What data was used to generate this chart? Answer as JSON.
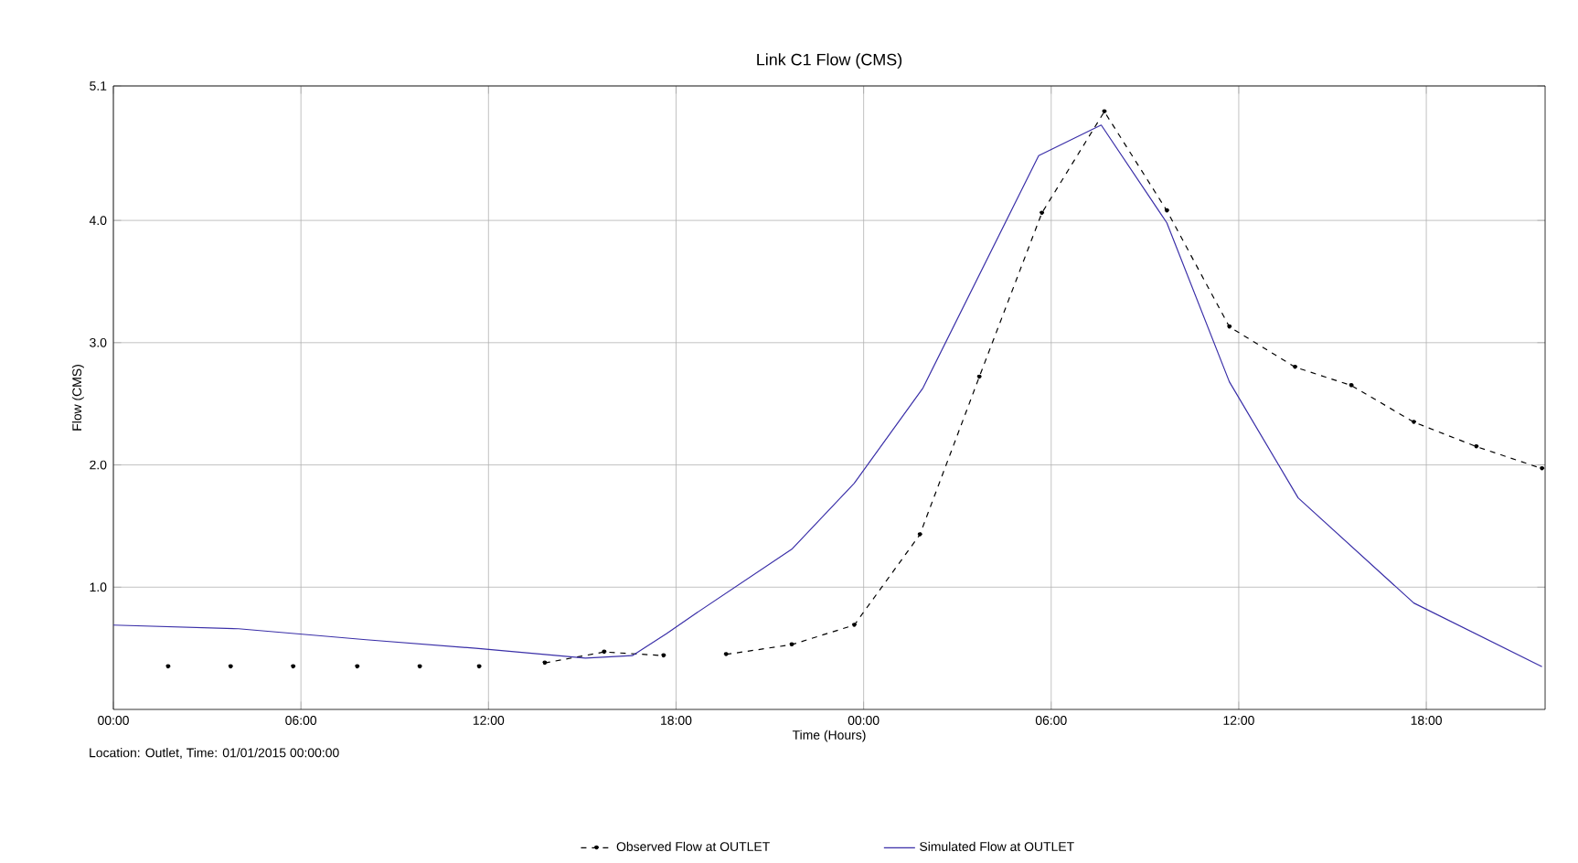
{
  "chart_data": {
    "type": "line",
    "title": "Link C1 Flow (CMS)",
    "xlabel": "Time (Hours)",
    "ylabel": "Flow (CMS)",
    "annotations": [
      "Location: Outlet, Time: 01/01/2015 00:00:00"
    ],
    "xlim": [
      "2015-01-01T00:00",
      "2015-01-02T21:48"
    ],
    "ylim": [
      0,
      5.1
    ],
    "xticks": [
      {
        "value": "2015-01-01T00:00",
        "label": "00:00"
      },
      {
        "value": "2015-01-01T06:00",
        "label": "06:00"
      },
      {
        "value": "2015-01-01T12:00",
        "label": "12:00"
      },
      {
        "value": "2015-01-01T18:00",
        "label": "18:00"
      },
      {
        "value": "2015-01-02T00:00",
        "label": "00:00"
      },
      {
        "value": "2015-01-02T06:00",
        "label": "06:00"
      },
      {
        "value": "2015-01-02T12:00",
        "label": "12:00"
      },
      {
        "value": "2015-01-02T18:00",
        "label": "18:00"
      }
    ],
    "yticks": [
      {
        "value": 1,
        "label": "1.0"
      },
      {
        "value": 2,
        "label": "2.0"
      },
      {
        "value": 3,
        "label": "3.0"
      },
      {
        "value": 4,
        "label": "4.0"
      },
      {
        "value": 5.1,
        "label": "5.1"
      }
    ],
    "grid": true,
    "legend": "bottom",
    "series": [
      {
        "name": "Observed Flow at OUTLET",
        "color": "#000000",
        "marker": "circle",
        "line_style": "dashed",
        "x": [
          "2015-01-01T01:45",
          "2015-01-01T02:42",
          "2015-01-01T03:45",
          "2015-01-01T04:42",
          "2015-01-01T05:45",
          "2015-01-01T06:42",
          "2015-01-01T07:48",
          "2015-01-01T08:42",
          "2015-01-01T09:48",
          "2015-01-01T10:42",
          "2015-01-01T11:42",
          "2015-01-01T12:42",
          "2015-01-01T13:48",
          "2015-01-01T15:42",
          "2015-01-01T17:36",
          "2015-01-01T18:36",
          "2015-01-01T19:36",
          "2015-01-01T21:42",
          "2015-01-01T23:42",
          "2015-01-02T01:48",
          "2015-01-02T03:42",
          "2015-01-02T05:42",
          "2015-01-02T07:42",
          "2015-01-02T09:42",
          "2015-01-02T11:42",
          "2015-01-02T13:48",
          "2015-01-02T15:36",
          "2015-01-02T17:36",
          "2015-01-02T19:36",
          "2015-01-02T21:42"
        ],
        "values": [
          0.35,
          null,
          0.35,
          null,
          0.35,
          null,
          0.35,
          null,
          0.35,
          null,
          0.35,
          null,
          0.38,
          0.47,
          0.44,
          null,
          0.45,
          0.53,
          0.69,
          1.43,
          2.72,
          4.06,
          4.89,
          4.08,
          3.13,
          2.8,
          2.65,
          2.35,
          2.15,
          1.97
        ]
      },
      {
        "name": "Simulated Flow at OUTLET",
        "color": "#3a2fa8",
        "marker": "none",
        "line_style": "solid",
        "x": [
          "2015-01-01T00:00",
          "2015-01-01T04:00",
          "2015-01-01T08:05",
          "2015-01-01T11:36",
          "2015-01-01T15:06",
          "2015-01-01T16:36",
          "2015-01-01T17:42",
          "2015-01-01T18:36",
          "2015-01-01T21:42",
          "2015-01-01T23:42",
          "2015-01-02T01:54",
          "2015-01-02T05:36",
          "2015-01-02T07:36",
          "2015-01-02T09:42",
          "2015-01-02T11:42",
          "2015-01-02T13:54",
          "2015-01-02T17:36",
          "2015-01-02T21:42"
        ],
        "values": [
          0.69,
          0.66,
          0.57,
          0.5,
          0.42,
          0.44,
          0.62,
          0.78,
          1.31,
          1.85,
          2.63,
          4.53,
          4.78,
          3.98,
          2.68,
          1.73,
          0.87,
          0.35
        ]
      }
    ]
  }
}
